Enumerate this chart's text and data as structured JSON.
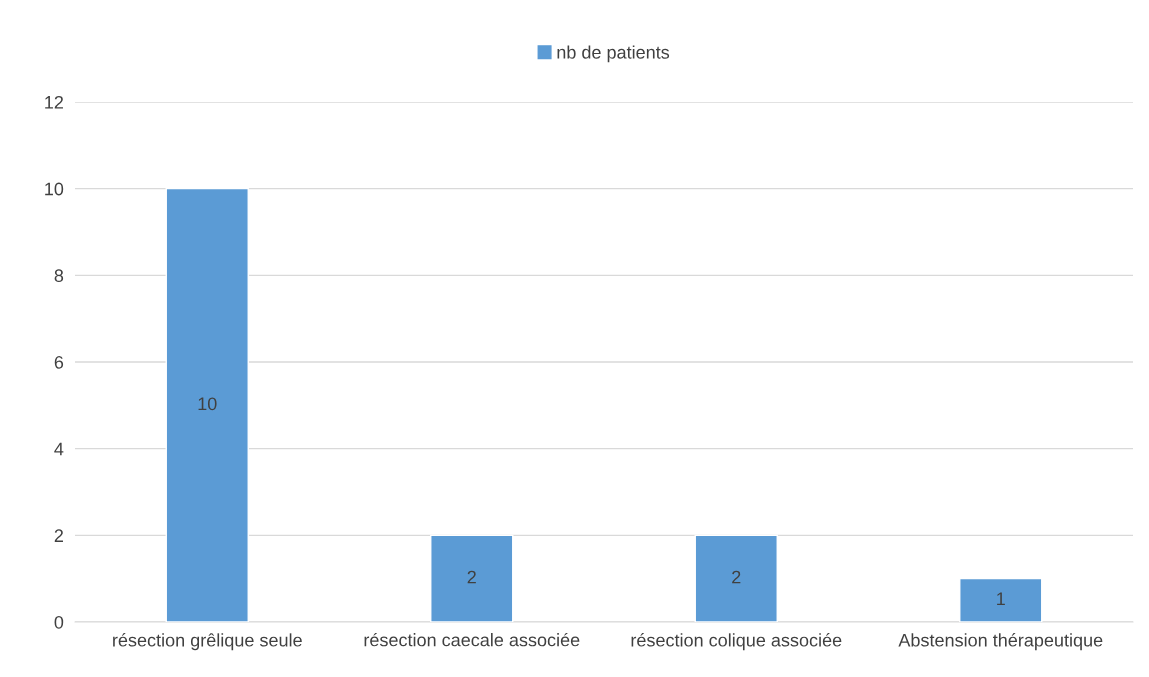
{
  "chart_data": {
    "type": "bar",
    "categories": [
      "résection grêlique seule",
      "résection caecale associée",
      "résection colique associée",
      "Abstension thérapeutique"
    ],
    "series": [
      {
        "name": "nb de patients",
        "color": "#5b9bd5",
        "values": [
          10,
          2,
          2,
          1
        ]
      }
    ],
    "ylim": [
      0,
      12
    ],
    "yticks": [
      0,
      2,
      4,
      6,
      8,
      10,
      12
    ],
    "grid": "y",
    "legend": "top",
    "data_labels": true
  }
}
